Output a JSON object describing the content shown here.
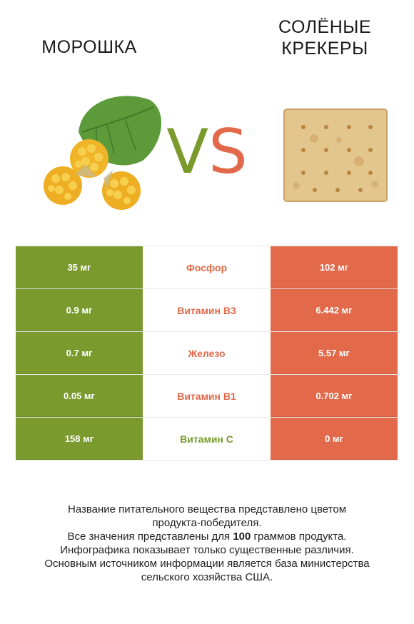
{
  "left_title": "МОРОШКА",
  "right_title_line1": "СОЛЁНЫЕ",
  "right_title_line2": "КРЕКЕРЫ",
  "vs_v": "V",
  "vs_s": "S",
  "colors": {
    "left": "#7a9a2e",
    "right": "#e2694a"
  },
  "rows": [
    {
      "left": "35 мг",
      "nutrient": "Фосфор",
      "right": "102 мг",
      "winner": "right"
    },
    {
      "left": "0.9 мг",
      "nutrient": "Витамин B3",
      "right": "6.442 мг",
      "winner": "right"
    },
    {
      "left": "0.7 мг",
      "nutrient": "Железо",
      "right": "5.57 мг",
      "winner": "right"
    },
    {
      "left": "0.05 мг",
      "nutrient": "Витамин B1",
      "right": "0.702 мг",
      "winner": "right"
    },
    {
      "left": "158 мг",
      "nutrient": "Витамин C",
      "right": "0 мг",
      "winner": "left"
    }
  ],
  "footer": {
    "line1": "Название питательного вещества представлено цветом",
    "line2": "продукта-победителя.",
    "line3_pre": "Все значения представлены для ",
    "line3_bold": "100",
    "line3_post": " граммов продукта.",
    "line4": "Инфографика показывает только существенные различия.",
    "line5": "Основным источником информации является база министерства",
    "line6": "сельского хозяйства США."
  }
}
